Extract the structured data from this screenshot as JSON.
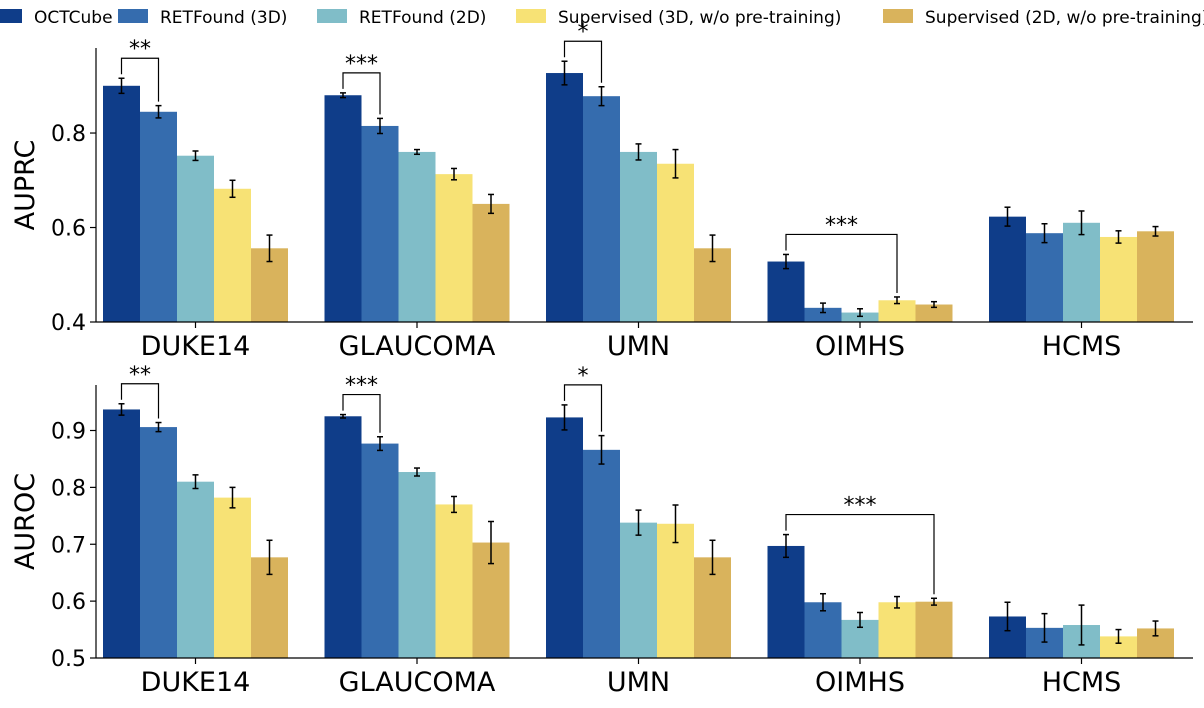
{
  "legend": [
    "OCTCube",
    "RETFound (3D)",
    "RETFound (2D)",
    "Supervised (3D, w/o pre-training)",
    "Supervised (2D, w/o pre-training)"
  ],
  "colors": [
    "#0f3d89",
    "#356cae",
    "#80bdc8",
    "#f7e275",
    "#d9b35c"
  ],
  "chart_data": [
    {
      "type": "bar",
      "ylabel": "AUPRC",
      "ylim": [
        0.4,
        0.98
      ],
      "yticks": [
        0.4,
        0.6,
        0.8
      ],
      "categories": [
        "DUKE14",
        "GLAUCOMA",
        "UMN",
        "OIMHS",
        "HCMS"
      ],
      "series": [
        {
          "name": "OCTCube",
          "values": [
            0.9,
            0.88,
            0.927,
            0.528,
            0.623
          ],
          "errors": [
            0.016,
            0.005,
            0.025,
            0.015,
            0.02
          ]
        },
        {
          "name": "RETFound (3D)",
          "values": [
            0.845,
            0.815,
            0.878,
            0.43,
            0.588
          ],
          "errors": [
            0.013,
            0.016,
            0.02,
            0.01,
            0.02
          ]
        },
        {
          "name": "RETFound (2D)",
          "values": [
            0.752,
            0.76,
            0.76,
            0.42,
            0.61
          ],
          "errors": [
            0.01,
            0.005,
            0.017,
            0.008,
            0.025
          ]
        },
        {
          "name": "Supervised (3D, w/o pre-training)",
          "values": [
            0.682,
            0.713,
            0.735,
            0.446,
            0.58
          ],
          "errors": [
            0.018,
            0.012,
            0.03,
            0.007,
            0.013
          ]
        },
        {
          "name": "Supervised (2D, w/o pre-training)",
          "values": [
            0.556,
            0.65,
            0.556,
            0.437,
            0.592
          ],
          "errors": [
            0.028,
            0.02,
            0.028,
            0.006,
            0.01
          ]
        }
      ],
      "significance": [
        {
          "category": 0,
          "from": 0,
          "to": 1,
          "label": "**"
        },
        {
          "category": 1,
          "from": 0,
          "to": 1,
          "label": "***"
        },
        {
          "category": 2,
          "from": 0,
          "to": 1,
          "label": "*"
        },
        {
          "category": 3,
          "from": 0,
          "to": 3,
          "label": "***"
        }
      ]
    },
    {
      "type": "bar",
      "ylabel": "AUROC",
      "ylim": [
        0.5,
        0.98
      ],
      "yticks": [
        0.5,
        0.6,
        0.7,
        0.8,
        0.9
      ],
      "categories": [
        "DUKE14",
        "GLAUCOMA",
        "UMN",
        "OIMHS",
        "HCMS"
      ],
      "series": [
        {
          "name": "OCTCube",
          "values": [
            0.937,
            0.925,
            0.923,
            0.697,
            0.573
          ],
          "errors": [
            0.01,
            0.003,
            0.022,
            0.02,
            0.025
          ]
        },
        {
          "name": "RETFound (3D)",
          "values": [
            0.906,
            0.877,
            0.866,
            0.598,
            0.553
          ],
          "errors": [
            0.008,
            0.012,
            0.025,
            0.015,
            0.025
          ]
        },
        {
          "name": "RETFound (2D)",
          "values": [
            0.81,
            0.827,
            0.738,
            0.567,
            0.558
          ],
          "errors": [
            0.012,
            0.007,
            0.022,
            0.013,
            0.035
          ]
        },
        {
          "name": "Supervised (3D, w/o pre-training)",
          "values": [
            0.782,
            0.77,
            0.736,
            0.598,
            0.538
          ],
          "errors": [
            0.018,
            0.014,
            0.033,
            0.01,
            0.012
          ]
        },
        {
          "name": "Supervised (2D, w/o pre-training)",
          "values": [
            0.677,
            0.703,
            0.677,
            0.599,
            0.552
          ],
          "errors": [
            0.03,
            0.037,
            0.03,
            0.006,
            0.013
          ]
        }
      ],
      "significance": [
        {
          "category": 0,
          "from": 0,
          "to": 1,
          "label": "**"
        },
        {
          "category": 1,
          "from": 0,
          "to": 1,
          "label": "***"
        },
        {
          "category": 2,
          "from": 0,
          "to": 1,
          "label": "*"
        },
        {
          "category": 3,
          "from": 0,
          "to": 4,
          "label": "***"
        }
      ]
    }
  ]
}
